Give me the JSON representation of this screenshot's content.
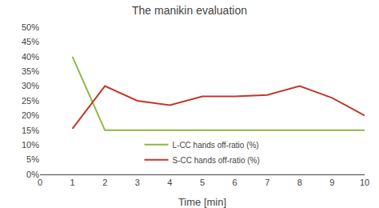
{
  "chart_data": {
    "type": "line",
    "title": "The manikin evaluation",
    "x_label": "Time [min]",
    "x": [
      1,
      2,
      3,
      4,
      5,
      6,
      7,
      8,
      9,
      10
    ],
    "series": [
      {
        "name": "L-CC hands off-ratio (%)",
        "color": "#8db843",
        "values": [
          40,
          15,
          15,
          15,
          15,
          15,
          15,
          15,
          15,
          15
        ]
      },
      {
        "name": "S-CC hands off-ratio (%)",
        "color": "#c0392b",
        "values": [
          15.5,
          30,
          25,
          23.5,
          26.5,
          26.5,
          27,
          30,
          26,
          20
        ]
      }
    ],
    "xlim": [
      0,
      10
    ],
    "ylim": [
      0,
      50
    ],
    "xticks": [
      0,
      1,
      2,
      3,
      4,
      5,
      6,
      7,
      8,
      9,
      10
    ],
    "yticks": [
      {
        "value": 0,
        "label": "0%"
      },
      {
        "value": 5,
        "label": "5%"
      },
      {
        "value": 10,
        "label": "10%"
      },
      {
        "value": 15,
        "label": "15%"
      },
      {
        "value": 20,
        "label": "20%"
      },
      {
        "value": 25,
        "label": "25%"
      },
      {
        "value": 30,
        "label": "30%"
      },
      {
        "value": 35,
        "label": "35%"
      },
      {
        "value": 40,
        "label": "40%"
      },
      {
        "value": 45,
        "label": "45%"
      },
      {
        "value": 50,
        "label": "50%"
      }
    ],
    "grid": false,
    "legend": "lower center"
  }
}
